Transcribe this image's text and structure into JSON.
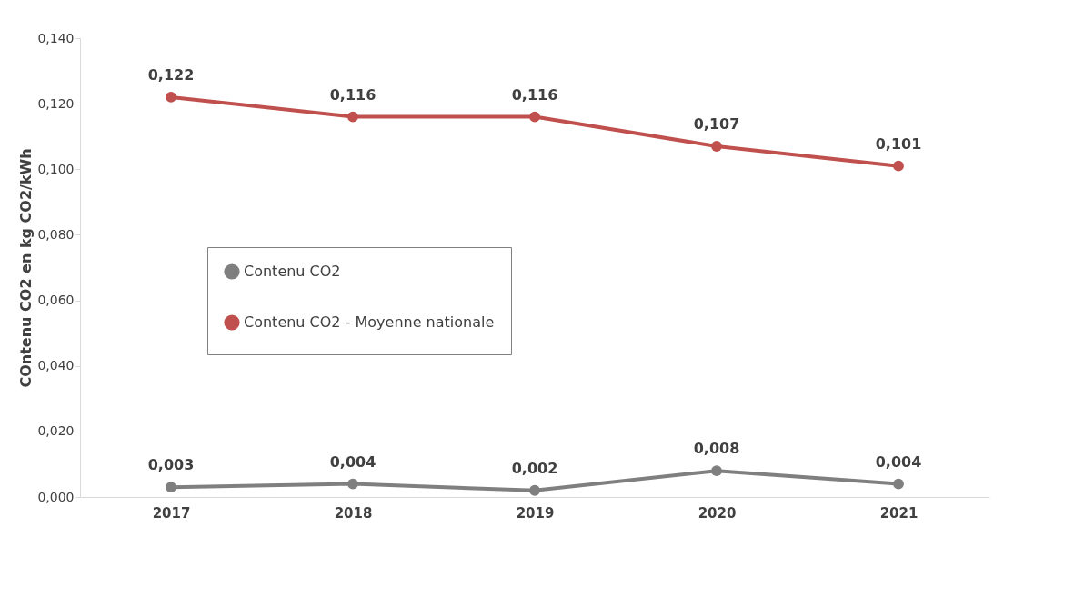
{
  "chart_data": {
    "type": "line",
    "ylabel": "COntenu CO2 en kg CO2/kWh",
    "categories": [
      "2017",
      "2018",
      "2019",
      "2020",
      "2021"
    ],
    "series": [
      {
        "name": "Contenu CO2",
        "color": "#7f7f7f",
        "values": [
          0.003,
          0.004,
          0.002,
          0.008,
          0.004
        ],
        "value_labels": [
          "0,003",
          "0,004",
          "0,002",
          "0,008",
          "0,004"
        ]
      },
      {
        "name": "Contenu CO2 - Moyenne nationale",
        "color": "#c0504d",
        "values": [
          0.122,
          0.116,
          0.116,
          0.107,
          0.101
        ],
        "value_labels": [
          "0,122",
          "0,116",
          "0,116",
          "0,107",
          "0,101"
        ]
      }
    ],
    "ylim": [
      0,
      0.14
    ],
    "yticks": [
      {
        "value": 0,
        "label": "0,000"
      },
      {
        "value": 0.02,
        "label": "0,020"
      },
      {
        "value": 0.04,
        "label": "0,040"
      },
      {
        "value": 0.06,
        "label": "0,060"
      },
      {
        "value": 0.08,
        "label": "0,080"
      },
      {
        "value": 0.1,
        "label": "0,100"
      },
      {
        "value": 0.12,
        "label": "0,120"
      },
      {
        "value": 0.14,
        "label": "0,140"
      }
    ],
    "grid": false,
    "legend": "center left",
    "marker": "circle",
    "line_style": "solid"
  }
}
